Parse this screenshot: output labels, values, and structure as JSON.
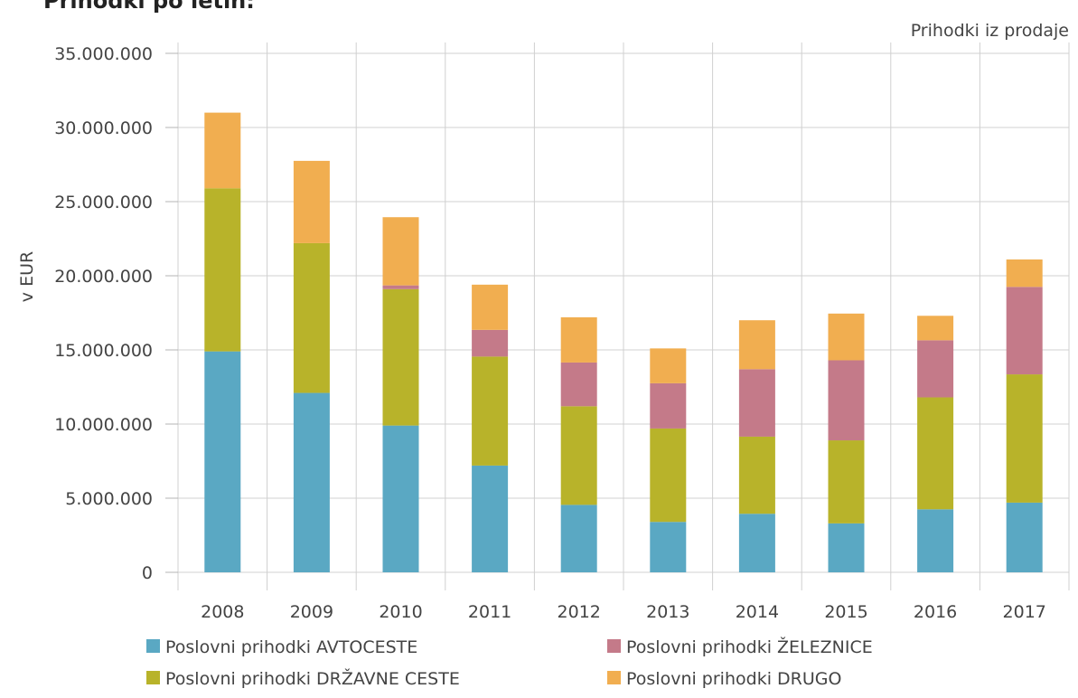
{
  "chart_data": {
    "type": "bar",
    "stacked": true,
    "title": "Prihodki po letih:",
    "subtitle": "Prihodki iz prodaje",
    "xlabel": "",
    "ylabel": "v EUR",
    "ylim": [
      0,
      35000000
    ],
    "yticks": [
      0,
      5000000,
      10000000,
      15000000,
      20000000,
      25000000,
      30000000,
      35000000
    ],
    "ytick_labels": [
      "0",
      "5.000.000",
      "10.000.000",
      "15.000.000",
      "20.000.000",
      "25.000.000",
      "30.000.000",
      "35.000.000"
    ],
    "grid": true,
    "legend_position": "bottom",
    "categories": [
      "2008",
      "2009",
      "2010",
      "2011",
      "2012",
      "2013",
      "2014",
      "2015",
      "2016",
      "2017"
    ],
    "series": [
      {
        "name": "Poslovni prihodki AVTOCESTE",
        "color": "#5aa8c3",
        "values": [
          14900000,
          12100000,
          9900000,
          7200000,
          4550000,
          3400000,
          3950000,
          3300000,
          4250000,
          4700000
        ]
      },
      {
        "name": "Poslovni prihodki DRŽAVNE CESTE",
        "color": "#b8b32a",
        "values": [
          11000000,
          10100000,
          9200000,
          7350000,
          6650000,
          6300000,
          5200000,
          5600000,
          7550000,
          8650000
        ]
      },
      {
        "name": "Poslovni prihodki ŽELEZNICE",
        "color": "#c47a89",
        "values": [
          0,
          0,
          250000,
          1800000,
          2950000,
          3050000,
          4550000,
          5400000,
          3850000,
          5900000
        ]
      },
      {
        "name": "Poslovni prihodki DRUGO",
        "color": "#f1ae50",
        "values": [
          5100000,
          5550000,
          4600000,
          3050000,
          3050000,
          2350000,
          3300000,
          3150000,
          1650000,
          1850000
        ]
      }
    ]
  }
}
